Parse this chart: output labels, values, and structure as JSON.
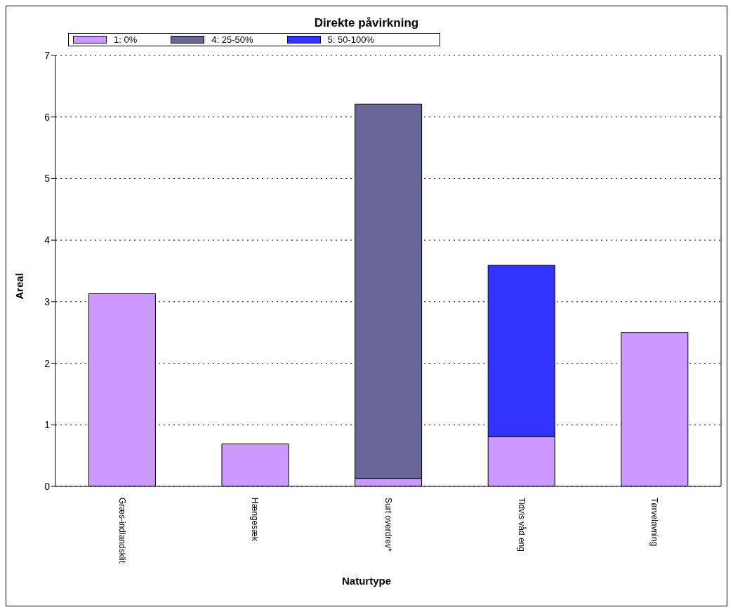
{
  "chart_data": {
    "type": "bar",
    "title": "Direkte påvirkning",
    "xlabel": "Naturtype",
    "ylabel": "Areal",
    "categories": [
      "Græs-indlandsklit",
      "Hængesæk",
      "Surt overdrev*",
      "Tidvis våd eng",
      "Tørvelavning"
    ],
    "series": [
      {
        "name": "1: 0%",
        "color": "#cc99ff",
        "values": [
          3.13,
          0.69,
          0.13,
          0.81,
          2.5
        ]
      },
      {
        "name": "4: 25-50%",
        "color": "#666699",
        "values": [
          null,
          null,
          6.08,
          null,
          null
        ]
      },
      {
        "name": "5: 50-100%",
        "color": "#3333ff",
        "values": [
          null,
          null,
          null,
          2.78,
          null
        ]
      }
    ],
    "stacked": true,
    "ylim": [
      0,
      7
    ],
    "yticks": [
      0,
      1,
      2,
      3,
      4,
      5,
      6,
      7
    ],
    "grid": "y",
    "legend": "top"
  }
}
